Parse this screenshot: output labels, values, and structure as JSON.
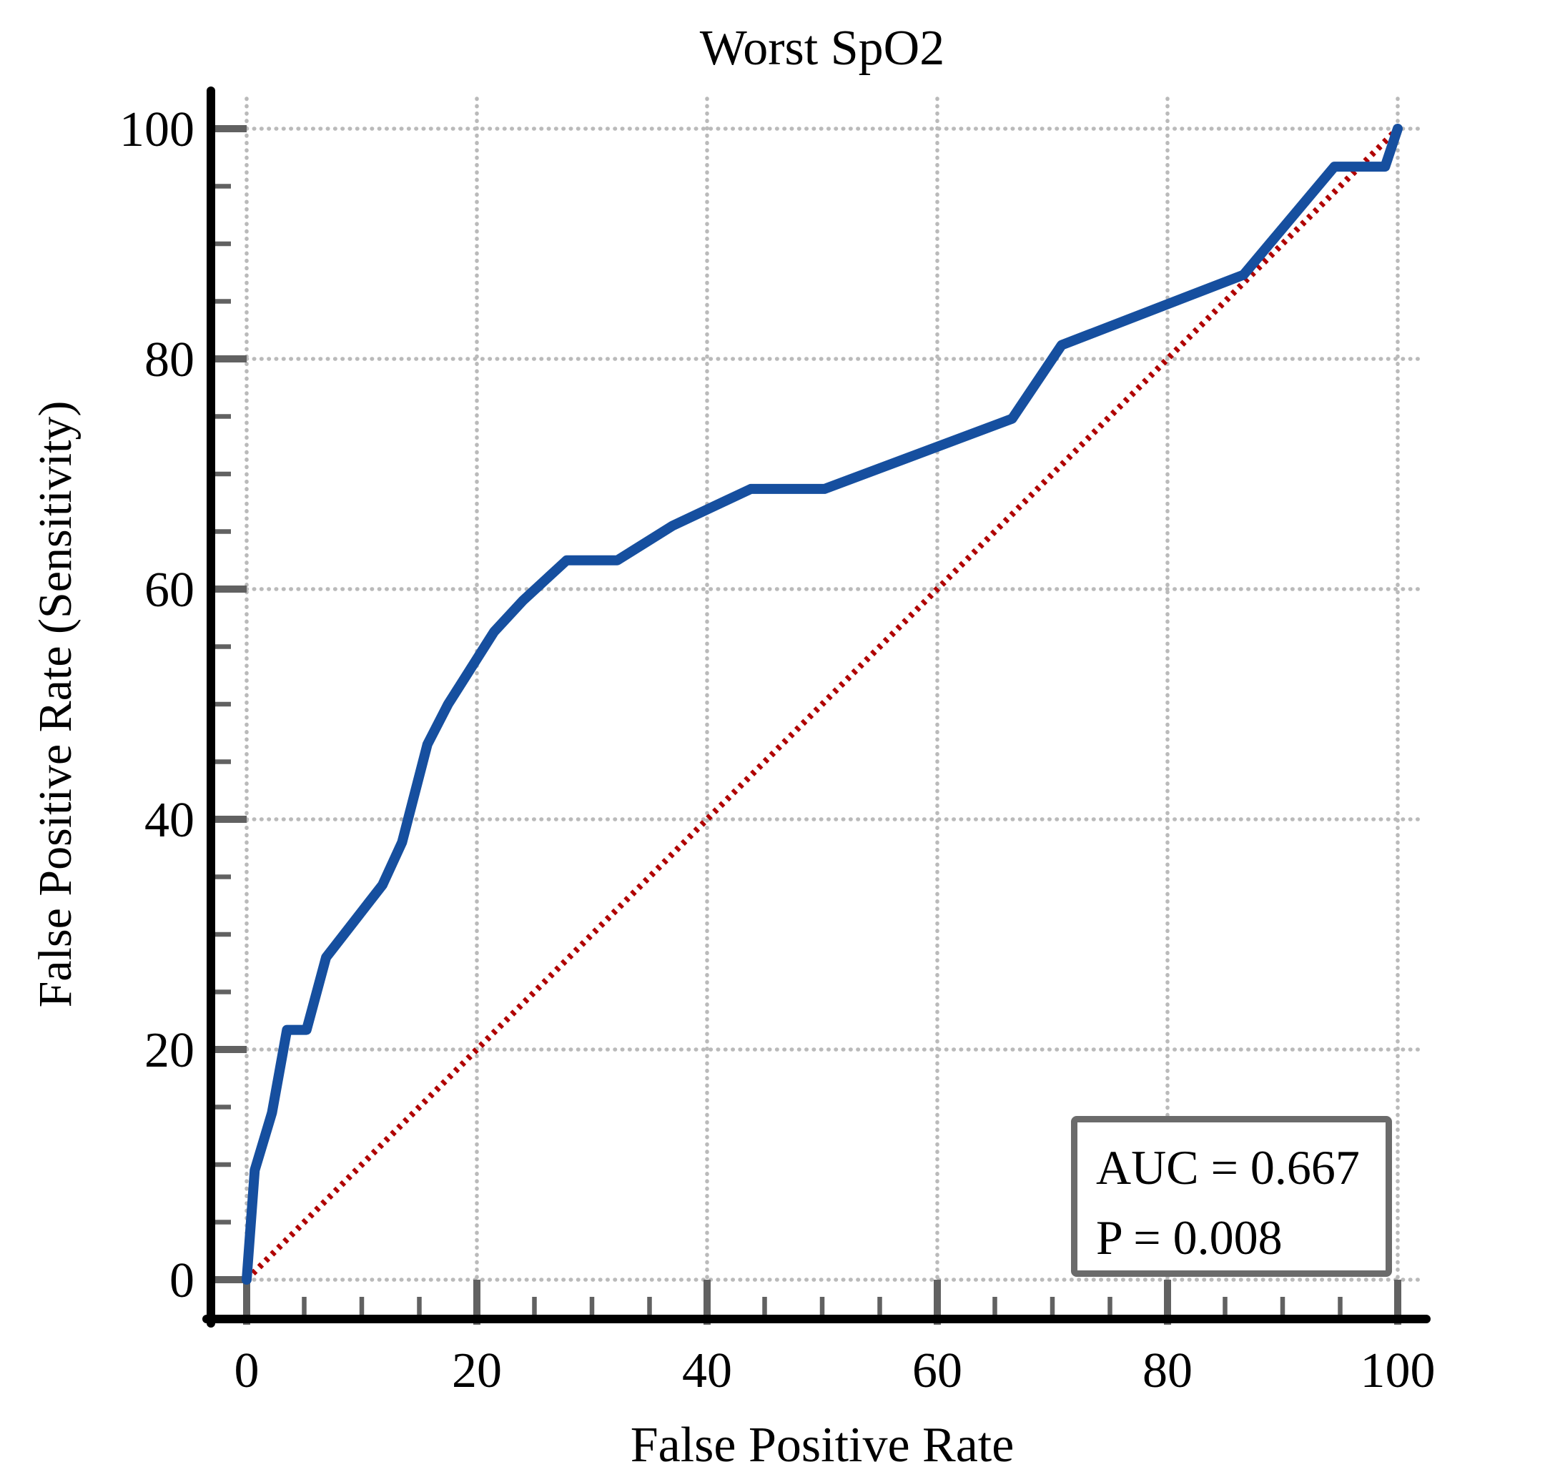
{
  "title": "Worst SpO2",
  "axes": {
    "x_label": "False Positive Rate",
    "y_label": "False Positive Rate (Sensitivity)",
    "x_ticks": [
      0,
      20,
      40,
      60,
      80,
      100
    ],
    "y_ticks": [
      0,
      20,
      40,
      60,
      80,
      100
    ],
    "minor_tick_step": 5,
    "x_range": [
      0,
      100
    ],
    "y_range": [
      0,
      100
    ]
  },
  "annotation": {
    "auc_label": "AUC = 0.667",
    "p_label": "P = 0.008"
  },
  "colors": {
    "curve": "#164f9f",
    "reference": "#b00000",
    "grid": "#bababa",
    "tick": "#616161",
    "spine": "#000000",
    "text": "#000000",
    "annotation_border": "#6b6b6b"
  },
  "chart_data": {
    "type": "line",
    "title": "Worst SpO2",
    "xlabel": "False Positive Rate",
    "ylabel": "False Positive Rate (Sensitivity)",
    "xlim": [
      0,
      100
    ],
    "ylim": [
      0,
      100
    ],
    "grid": "dotted, at major ticks every 20, minor ticks every 5",
    "legend": "none",
    "series": [
      {
        "name": "ROC curve (Worst SpO2)",
        "color": "#164f9f",
        "style": "solid",
        "x": [
          0,
          0.7,
          2.2,
          3.5,
          5.2,
          6.9,
          11.8,
          13.5,
          15.7,
          17.5,
          21.5,
          24.0,
          27.8,
          32.2,
          37.0,
          43.8,
          50.2,
          66.5,
          70.8,
          86.6,
          94.5,
          98.9,
          100
        ],
        "y": [
          0,
          9.5,
          14.5,
          21.7,
          21.7,
          28.0,
          34.3,
          38.0,
          46.5,
          50.0,
          56.3,
          59.0,
          62.5,
          62.5,
          65.5,
          68.7,
          68.7,
          74.8,
          81.2,
          87.3,
          96.7,
          96.7,
          100
        ]
      },
      {
        "name": "Chance reference diagonal",
        "color": "#b00000",
        "style": "dotted",
        "x": [
          0,
          100
        ],
        "y": [
          0,
          100
        ]
      }
    ],
    "annotations": [
      "AUC = 0.667",
      "P = 0.008"
    ],
    "stats": {
      "auc": 0.667,
      "p_value": 0.008
    }
  }
}
